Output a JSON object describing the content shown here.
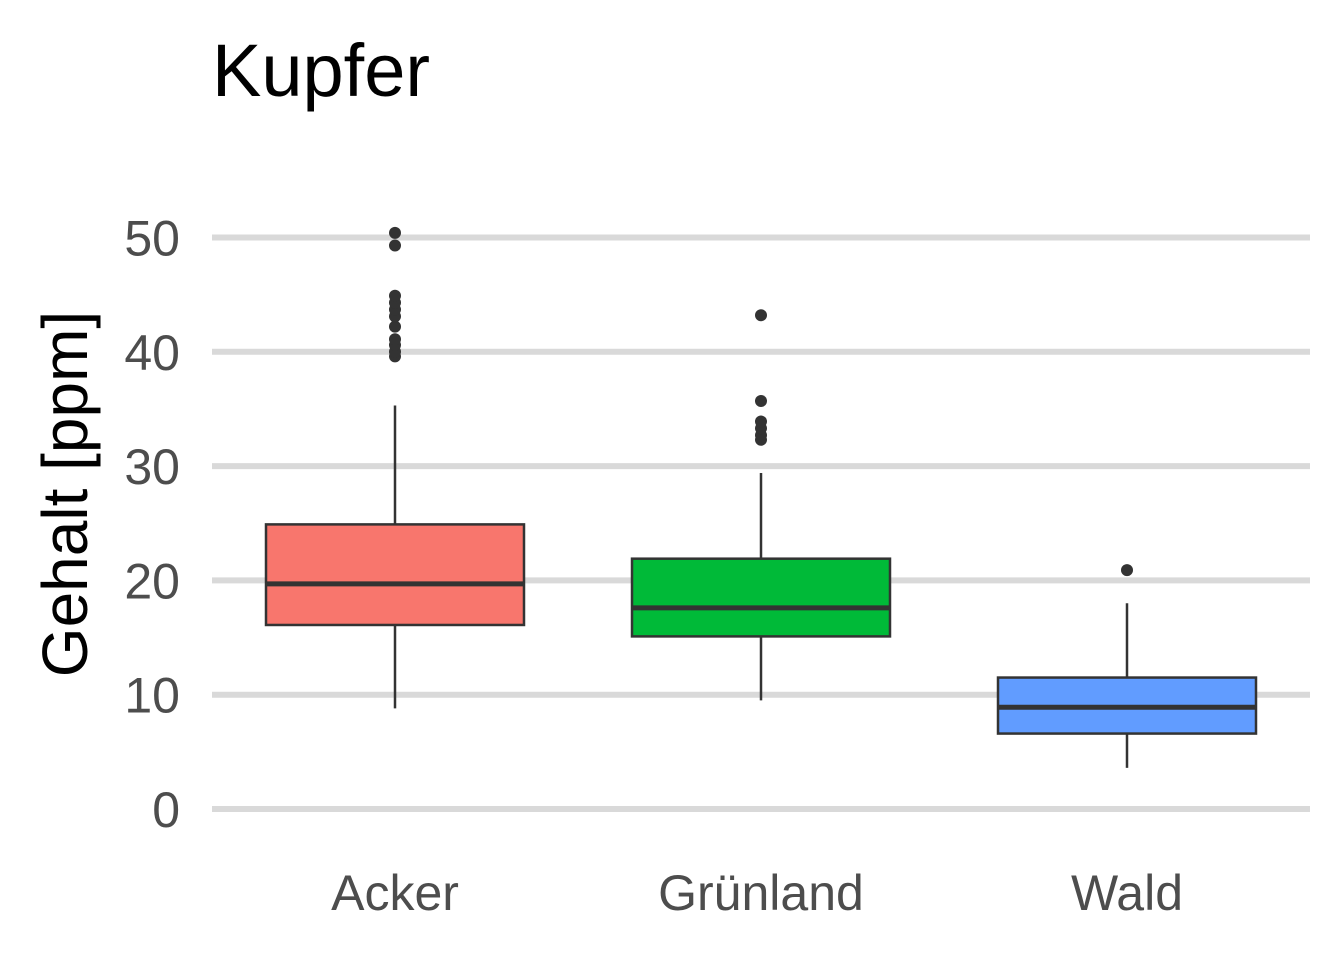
{
  "chart_data": {
    "type": "boxplot",
    "title": "Kupfer",
    "xlabel": "",
    "ylabel": "Gehalt [ppm]",
    "ylim": [
      -2.5,
      57.5
    ],
    "yticks": [
      0,
      10,
      20,
      30,
      40,
      50
    ],
    "grid": "horizontal-major",
    "legend": "none",
    "categories": [
      "Acker",
      "Grünland",
      "Wald"
    ],
    "boxes": [
      {
        "category": "Acker",
        "color": "#F8766D",
        "whisker_low": 8.8,
        "q1": 16.1,
        "median": 19.7,
        "q3": 24.9,
        "whisker_high": 35.3,
        "outliers": [
          39.6,
          40.0,
          40.6,
          41.1,
          42.2,
          43.1,
          43.7,
          44.3,
          44.9,
          49.3,
          50.4
        ]
      },
      {
        "category": "Grünland",
        "color": "#00BA38",
        "whisker_low": 9.5,
        "q1": 15.1,
        "median": 17.6,
        "q3": 21.9,
        "whisker_high": 29.4,
        "outliers": [
          32.3,
          32.7,
          33.3,
          33.9,
          35.7,
          43.2
        ]
      },
      {
        "category": "Wald",
        "color": "#619CFF",
        "whisker_low": 3.6,
        "q1": 6.6,
        "median": 8.9,
        "q3": 11.5,
        "whisker_high": 18.0,
        "outliers": [
          20.9
        ]
      }
    ]
  }
}
